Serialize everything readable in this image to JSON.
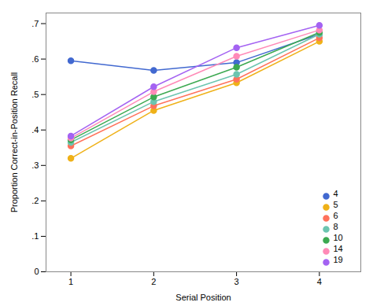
{
  "chart_data": {
    "type": "line",
    "xlabel": "Serial Position",
    "ylabel": "Proportion Correct-in-Position Recall",
    "x": [
      1,
      2,
      3,
      4
    ],
    "series": [
      {
        "name": "4",
        "values": [
          0.595,
          0.568,
          0.59,
          0.67
        ]
      },
      {
        "name": "5",
        "values": [
          0.32,
          0.455,
          0.533,
          0.65
        ]
      },
      {
        "name": "6",
        "values": [
          0.355,
          0.468,
          0.543,
          0.66
        ]
      },
      {
        "name": "8",
        "values": [
          0.365,
          0.48,
          0.557,
          0.67
        ]
      },
      {
        "name": "10",
        "values": [
          0.372,
          0.493,
          0.577,
          0.675
        ]
      },
      {
        "name": "14",
        "values": [
          0.377,
          0.508,
          0.608,
          0.682
        ]
      },
      {
        "name": "19",
        "values": [
          0.383,
          0.522,
          0.632,
          0.695
        ]
      }
    ],
    "xlim": [
      0.7,
      4.5
    ],
    "ylim": [
      0.0,
      0.73
    ],
    "xticks": [
      1,
      2,
      3,
      4
    ],
    "yticks": [
      0,
      {
        "value": 0.1,
        "label": ".1"
      },
      {
        "value": 0.2,
        "label": ".2"
      },
      {
        "value": 0.3,
        "label": ".3"
      },
      {
        "value": 0.4,
        "label": ".4"
      },
      {
        "value": 0.5,
        "label": ".5"
      },
      {
        "value": 0.6,
        "label": ".6"
      },
      {
        "value": 0.7,
        "label": ".7"
      }
    ],
    "marker": "circle",
    "legend": "lower right",
    "grid": false
  }
}
